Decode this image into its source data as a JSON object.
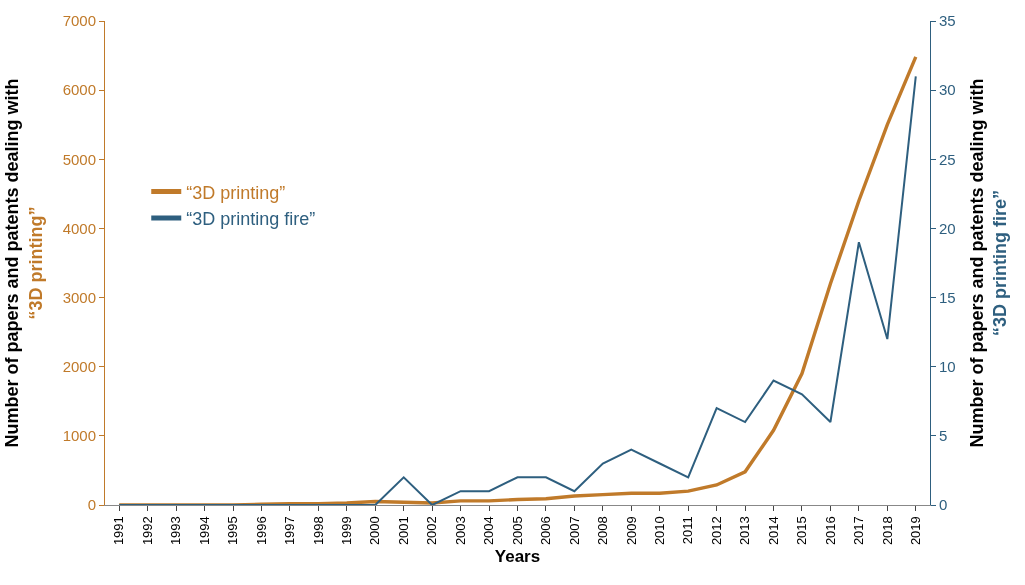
{
  "chart_data": {
    "type": "line",
    "xlabel": "Years",
    "ylabel": "Number of papers and patents dealing with\n“3D printing”",
    "y2label": "Number of papers and patents dealing with\n“3D printing fire”",
    "categories": [
      "1991",
      "1992",
      "1993",
      "1994",
      "1995",
      "1996",
      "1997",
      "1998",
      "1999",
      "2000",
      "2001",
      "2002",
      "2003",
      "2004",
      "2005",
      "2006",
      "2007",
      "2008",
      "2009",
      "2010",
      "2011",
      "2012",
      "2013",
      "2014",
      "2015",
      "2016",
      "2017",
      "2018",
      "2019"
    ],
    "series": [
      {
        "name": "“3D printing”",
        "color": "#c07a2a",
        "values": [
          0,
          0,
          0,
          0,
          0,
          10,
          20,
          20,
          30,
          50,
          40,
          30,
          60,
          60,
          80,
          90,
          130,
          150,
          170,
          170,
          200,
          290,
          480,
          1080,
          1900,
          3200,
          4400,
          5500,
          6480
        ]
      },
      {
        "name": "“3D printing fire”",
        "color": "#2e5f7f",
        "axis": "y2",
        "values": [
          0,
          0,
          0,
          0,
          0,
          0,
          0,
          0,
          0,
          0,
          2,
          0,
          1,
          1,
          2,
          2,
          1,
          3,
          4,
          3,
          2,
          7,
          6,
          9,
          8,
          6,
          19,
          12,
          31
        ]
      }
    ],
    "ylim": [
      0,
      7000
    ],
    "yticks": [
      0,
      1000,
      2000,
      3000,
      4000,
      5000,
      6000,
      7000
    ],
    "y2lim": [
      0,
      35
    ],
    "y2ticks": [
      0,
      5,
      10,
      15,
      20,
      25,
      30,
      35
    ],
    "legend": "left",
    "line_style": "solid",
    "marker": "none"
  }
}
